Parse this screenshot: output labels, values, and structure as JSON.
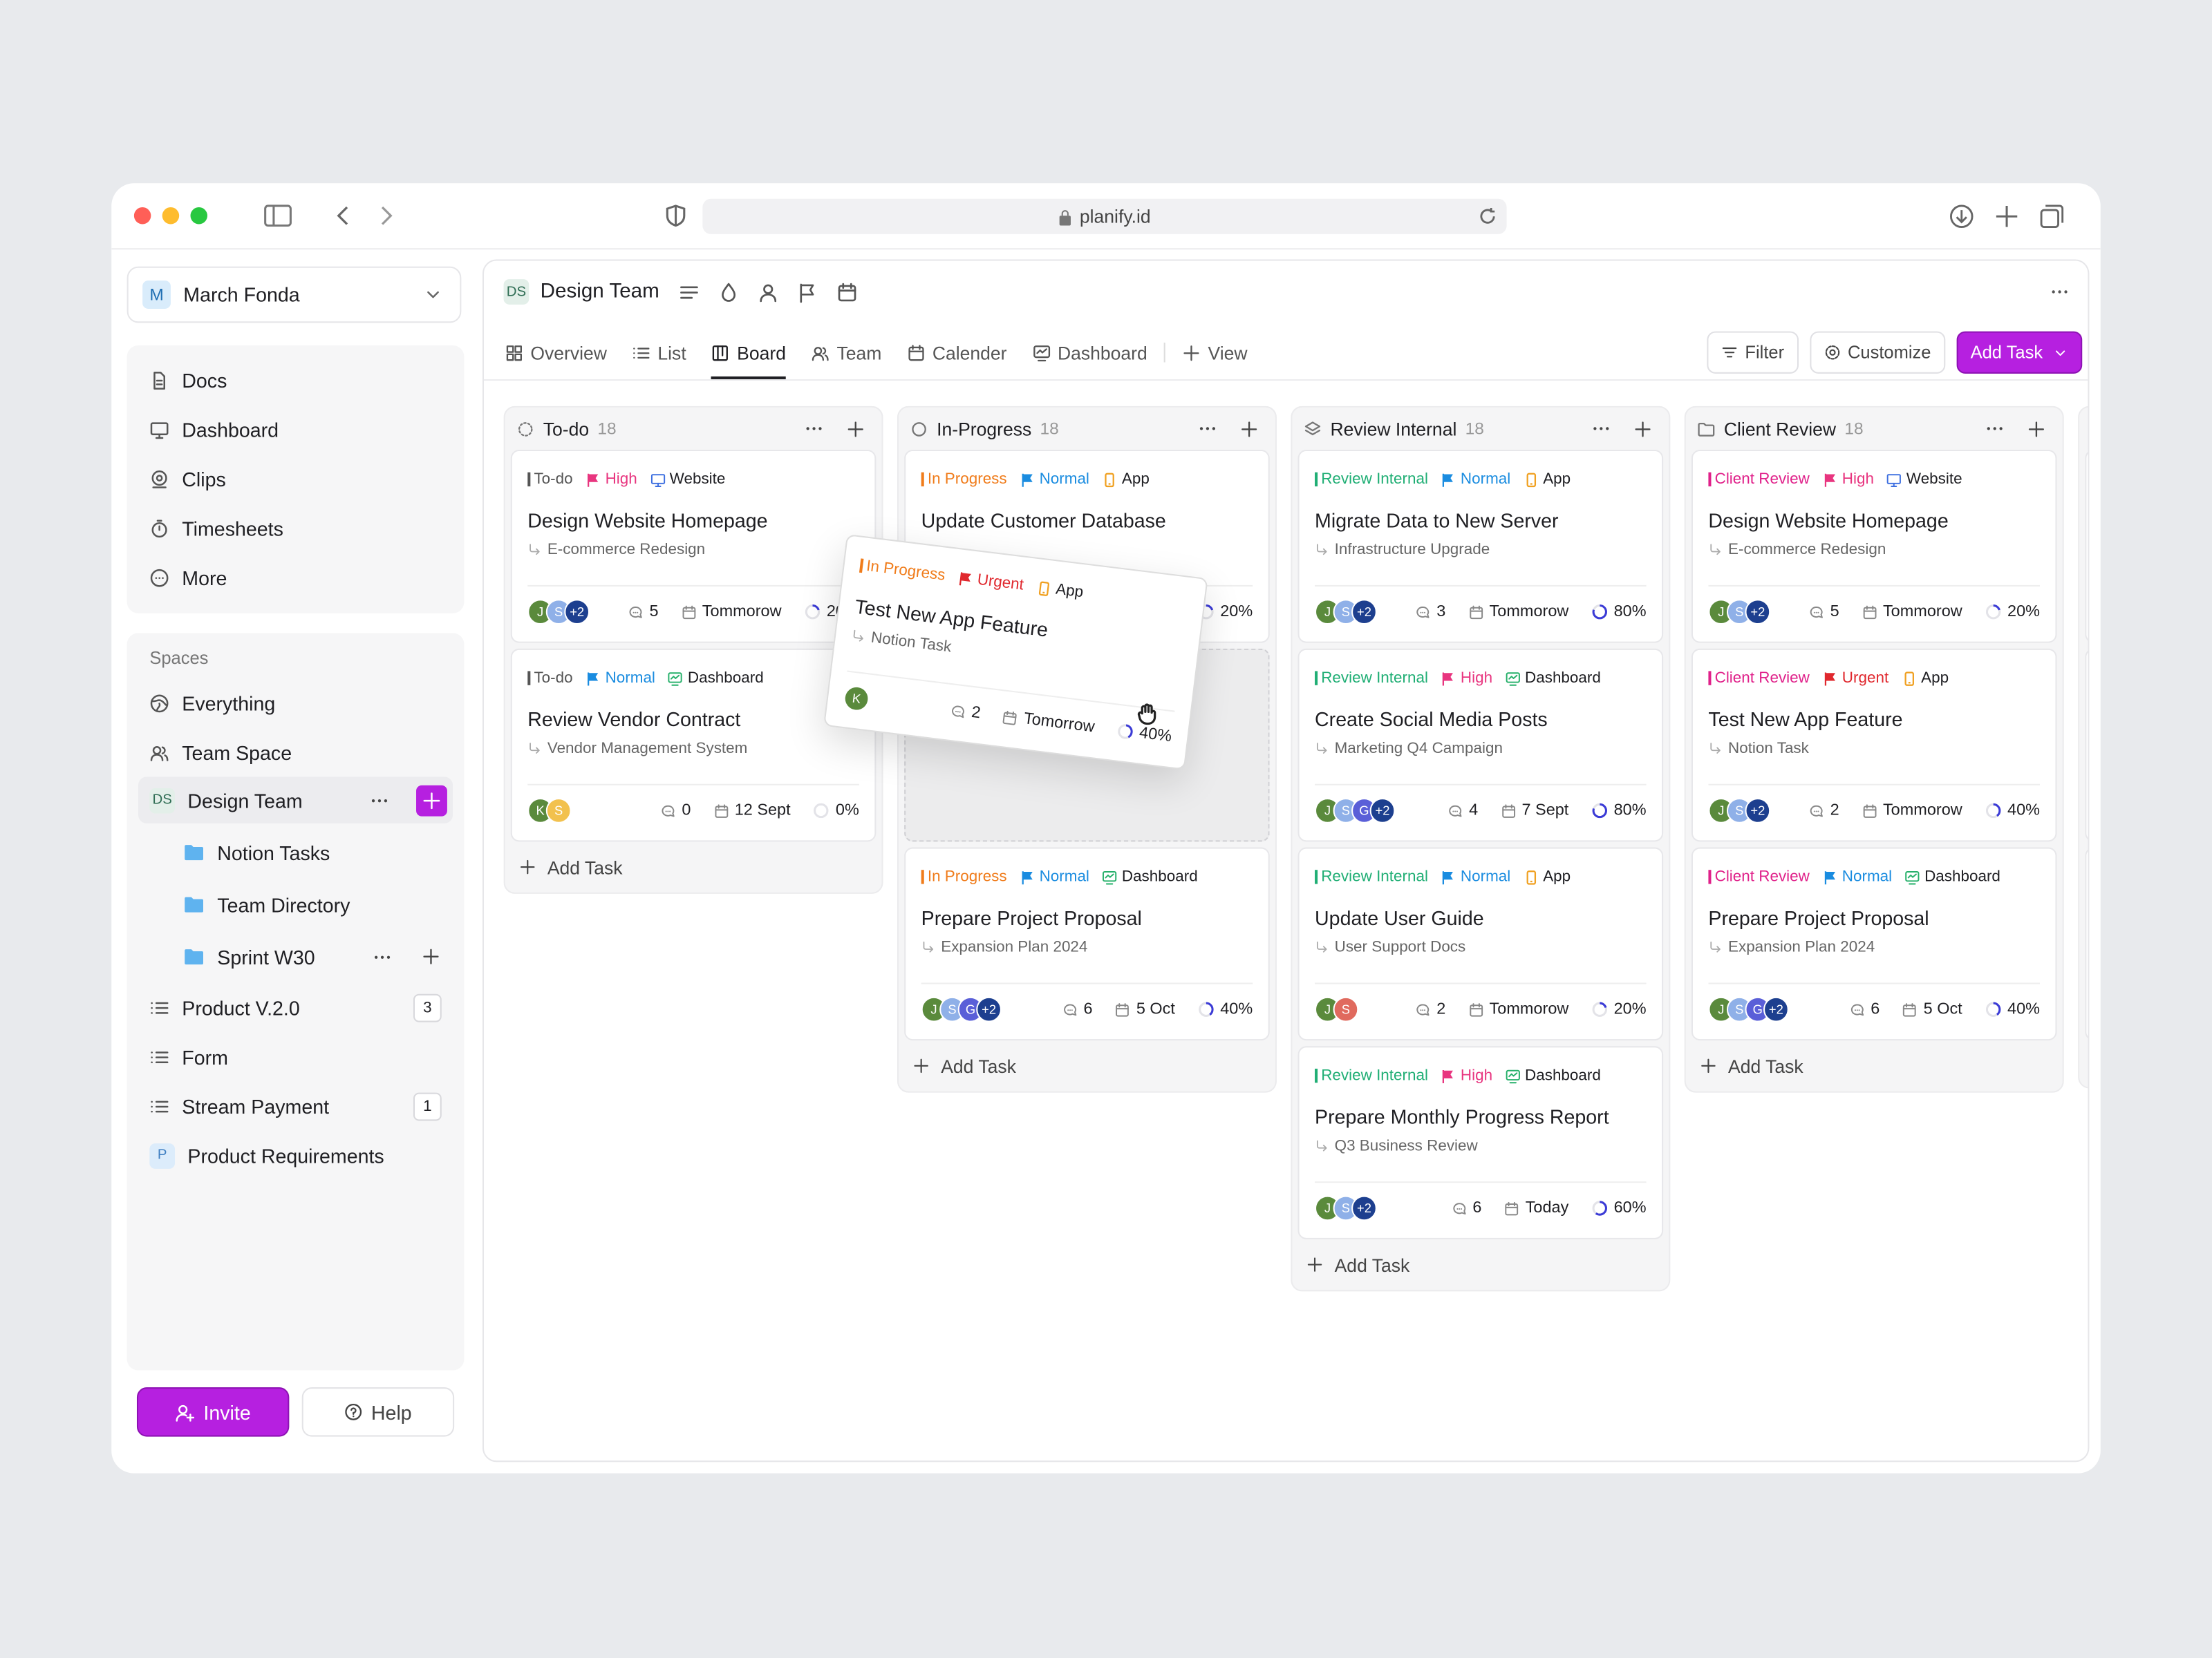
{
  "browser": {
    "url": "planify.id"
  },
  "sidebar": {
    "user": {
      "initial": "M",
      "name": "March Fonda"
    },
    "nav": [
      "Docs",
      "Dashboard",
      "Clips",
      "Timesheets",
      "More"
    ],
    "spaces_label": "Spaces",
    "spaces": [
      {
        "label": "Everything"
      },
      {
        "label": "Team Space"
      },
      {
        "label": "Design Team",
        "badge": "DS",
        "children": [
          "Notion Tasks",
          "Team Directory",
          "Sprint W30"
        ]
      },
      {
        "label": "Product V.2.0",
        "count": 3
      },
      {
        "label": "Form"
      },
      {
        "label": "Stream Payment",
        "count": 1
      },
      {
        "label": "Product Requirements",
        "badge": "P"
      }
    ],
    "invite": "Invite",
    "help": "Help"
  },
  "header": {
    "badge": "DS",
    "title": "Design Team",
    "tabs": [
      "Overview",
      "List",
      "Board",
      "Team",
      "Calender",
      "Dashboard",
      "View"
    ],
    "active_tab": 2,
    "filter": "Filter",
    "customize": "Customize",
    "add_task": "Add Task"
  },
  "board": {
    "add_task_label": "Add Task",
    "columns": [
      {
        "name": "To-do",
        "count": 18,
        "cards": [
          {
            "status": {
              "label": "To-do",
              "color": "#555555"
            },
            "priority": {
              "label": "High",
              "color": "#e8357f"
            },
            "tag": {
              "label": "Website",
              "color": "#3d6fe0"
            },
            "title": "Design Website Homepage",
            "subtitle": "E-commerce Redesign",
            "avatars": [
              "J",
              "S",
              "+2"
            ],
            "comments": 5,
            "date": "Tommorow",
            "progress": "20%"
          },
          {
            "status": {
              "label": "To-do",
              "color": "#555555"
            },
            "priority": {
              "label": "Normal",
              "color": "#1a8ce0"
            },
            "tag": {
              "label": "Dashboard",
              "color": "#26b06a"
            },
            "title": "Review Vendor Contract",
            "subtitle": "Vendor Management System",
            "avatars": [
              "K",
              "S"
            ],
            "comments": 0,
            "date": "12 Sept",
            "progress": "0%"
          }
        ]
      },
      {
        "name": "In-Progress",
        "count": 18,
        "cards": [
          {
            "status": {
              "label": "In Progress",
              "color": "#f07c1b"
            },
            "priority": {
              "label": "Normal",
              "color": "#1a8ce0"
            },
            "tag": {
              "label": "App",
              "color": "#f0a020"
            },
            "title": "Update Customer Database",
            "progress": "20%"
          },
          {
            "status": {
              "label": "In Progress",
              "color": "#f07c1b"
            },
            "priority": {
              "label": "Normal",
              "color": "#1a8ce0"
            },
            "tag": {
              "label": "Dashboard",
              "color": "#26b06a"
            },
            "title": "Prepare Project Proposal",
            "subtitle": "Expansion Plan 2024",
            "avatars": [
              "J",
              "S",
              "G",
              "+2"
            ],
            "comments": 6,
            "date": "5 Oct",
            "progress": "40%"
          }
        ],
        "dragging": {
          "status": {
            "label": "In Progress",
            "color": "#f07c1b"
          },
          "priority": {
            "label": "Urgent",
            "color": "#e0282e"
          },
          "tag": {
            "label": "App",
            "color": "#f0a020"
          },
          "title": "Test New App Feature",
          "subtitle": "Notion Task",
          "avatars": [
            "K"
          ],
          "comments": 2,
          "date": "Tomorrow",
          "progress": "40%"
        }
      },
      {
        "name": "Review Internal",
        "count": 18,
        "cards": [
          {
            "status": {
              "label": "Review Internal",
              "color": "#1fae74"
            },
            "priority": {
              "label": "Normal",
              "color": "#1a8ce0"
            },
            "tag": {
              "label": "App",
              "color": "#f0a020"
            },
            "title": "Migrate Data to New Server",
            "subtitle": "Infrastructure Upgrade",
            "avatars": [
              "J",
              "S",
              "+2"
            ],
            "comments": 3,
            "date": "Tommorow",
            "progress": "80%"
          },
          {
            "status": {
              "label": "Review Internal",
              "color": "#1fae74"
            },
            "priority": {
              "label": "High",
              "color": "#e8357f"
            },
            "tag": {
              "label": "Dashboard",
              "color": "#26b06a"
            },
            "title": "Create Social Media Posts",
            "subtitle": "Marketing Q4 Campaign",
            "avatars": [
              "J",
              "S",
              "G",
              "+2"
            ],
            "comments": 4,
            "date": "7 Sept",
            "progress": "80%"
          },
          {
            "status": {
              "label": "Review Internal",
              "color": "#1fae74"
            },
            "priority": {
              "label": "Normal",
              "color": "#1a8ce0"
            },
            "tag": {
              "label": "App",
              "color": "#f0a020"
            },
            "title": "Update User Guide",
            "subtitle": "User Support Docs",
            "avatars": [
              "J",
              "S"
            ],
            "comments": 2,
            "date": "Tommorow",
            "progress": "20%"
          },
          {
            "status": {
              "label": "Review Internal",
              "color": "#1fae74"
            },
            "priority": {
              "label": "High",
              "color": "#e8357f"
            },
            "tag": {
              "label": "Dashboard",
              "color": "#26b06a"
            },
            "title": "Prepare Monthly Progress Report",
            "subtitle": "Q3 Business Review",
            "avatars": [
              "J",
              "S",
              "+2"
            ],
            "comments": 6,
            "date": "Today",
            "progress": "60%"
          }
        ]
      },
      {
        "name": "Client Review",
        "count": 18,
        "cards": [
          {
            "status": {
              "label": "Client Review",
              "color": "#e0218a"
            },
            "priority": {
              "label": "High",
              "color": "#e8357f"
            },
            "tag": {
              "label": "Website",
              "color": "#3d6fe0"
            },
            "title": "Design Website Homepage",
            "subtitle": "E-commerce Redesign",
            "avatars": [
              "J",
              "S",
              "+2"
            ],
            "comments": 5,
            "date": "Tommorow",
            "progress": "20%"
          },
          {
            "status": {
              "label": "Client Review",
              "color": "#e0218a"
            },
            "priority": {
              "label": "Urgent",
              "color": "#e0282e"
            },
            "tag": {
              "label": "App",
              "color": "#f0a020"
            },
            "title": "Test New App Feature",
            "subtitle": "Notion Task",
            "avatars": [
              "J",
              "S",
              "+2"
            ],
            "comments": 2,
            "date": "Tommorow",
            "progress": "40%"
          },
          {
            "status": {
              "label": "Client Review",
              "color": "#e0218a"
            },
            "priority": {
              "label": "Normal",
              "color": "#1a8ce0"
            },
            "tag": {
              "label": "Dashboard",
              "color": "#26b06a"
            },
            "title": "Prepare Project Proposal",
            "subtitle": "Expansion Plan 2024",
            "avatars": [
              "J",
              "S",
              "G",
              "+2"
            ],
            "comments": 6,
            "date": "5 Oct",
            "progress": "40%"
          }
        ]
      }
    ]
  }
}
